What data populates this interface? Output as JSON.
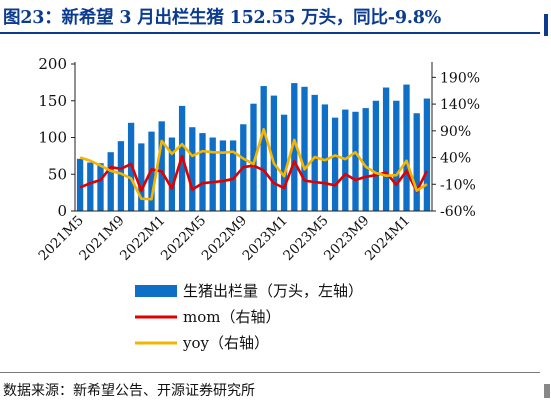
{
  "page": {
    "title": "图23：新希望 3 月出栏生猪 152.55 万头，同比-9.8%",
    "source": "数据来源：新希望公告、开源证券研究所"
  },
  "colors": {
    "title": "#0b3b8f",
    "bar": "#0f6fc6",
    "mom": "#e00000",
    "yoy": "#f5b400"
  },
  "chart_data": {
    "type": "bar",
    "title": "",
    "xlabel": "",
    "ylabel": "",
    "ylim": [
      0,
      200
    ],
    "y_ticks": [
      0,
      50,
      100,
      150,
      200
    ],
    "y2lim": [
      -60,
      215
    ],
    "y2_ticks": [
      "-60%",
      "-10%",
      "40%",
      "90%",
      "140%",
      "190%"
    ],
    "y2_tick_values": [
      -60,
      -10,
      40,
      90,
      140,
      190
    ],
    "categories": [
      "2021M5",
      "2021M6",
      "2021M7",
      "2021M8",
      "2021M9",
      "2021M10",
      "2021M11",
      "2021M12",
      "2022M1",
      "2022M2",
      "2022M3",
      "2022M4",
      "2022M5",
      "2022M6",
      "2022M7",
      "2022M8",
      "2022M9",
      "2022M10",
      "2022M11",
      "2022M12",
      "2023M1",
      "2023M2",
      "2023M3",
      "2023M4",
      "2023M5",
      "2023M6",
      "2023M7",
      "2023M8",
      "2023M9",
      "2023M10",
      "2023M11",
      "2023M12",
      "2024M1",
      "2024M2",
      "2024M3"
    ],
    "x_tick_labels": [
      "2021M5",
      "2021M9",
      "2022M1",
      "2022M5",
      "2022M9",
      "2023M1",
      "2023M5",
      "2023M9",
      "2024M1"
    ],
    "series": [
      {
        "name": "生猪出栏量（万头，左轴）",
        "axis": "left",
        "kind": "bar",
        "values": [
          71,
          66,
          65,
          80,
          95,
          120,
          92,
          108,
          122,
          100,
          143,
          114,
          106,
          100,
          96,
          96,
          118,
          146,
          170,
          157,
          131,
          174,
          169,
          158,
          145,
          127,
          138,
          135,
          140,
          150,
          168,
          150,
          172,
          133,
          153
        ]
      },
      {
        "name": "mom（右轴）",
        "axis": "right",
        "kind": "line",
        "values": [
          -16,
          -8,
          -2,
          22,
          19,
          28,
          -22,
          18,
          14,
          -18,
          43,
          -20,
          -8,
          -6,
          -4,
          0,
          22,
          25,
          16,
          -8,
          -17,
          33,
          -3,
          -6,
          -8,
          -12,
          9,
          -2,
          4,
          7,
          12,
          -11,
          15,
          -23,
          15
        ]
      },
      {
        "name": "yoy（右轴）",
        "axis": "right",
        "kind": "line",
        "values": [
          40,
          34,
          25,
          15,
          10,
          1,
          -37,
          -38,
          71,
          47,
          65,
          43,
          52,
          50,
          49,
          51,
          38,
          28,
          93,
          29,
          5,
          73,
          18,
          41,
          35,
          44,
          37,
          50,
          23,
          11,
          6,
          7,
          34,
          -22,
          -10
        ]
      }
    ],
    "legend_position": "bottom",
    "grid": false
  }
}
